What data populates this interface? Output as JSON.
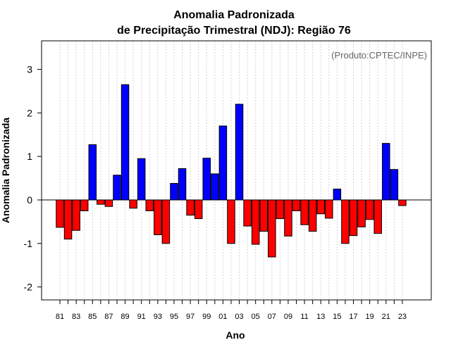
{
  "chart_data": {
    "type": "bar",
    "title": "Anomalia Padronizada",
    "subtitle": "de Precipitação Trimestral (NDJ): Região 76",
    "xlabel": "Ano",
    "ylabel": "Anomalia Padronizada",
    "source": "(Produto:CPTEC/INPE)",
    "ylim": [
      -2.3,
      3.65
    ],
    "yticks": [
      "-2",
      "-1",
      "0",
      "1",
      "2",
      "3"
    ],
    "xtick_labels": [
      "81",
      "83",
      "85",
      "87",
      "89",
      "91",
      "93",
      "95",
      "97",
      "99",
      "01",
      "03",
      "05",
      "07",
      "09",
      "11",
      "13",
      "15",
      "17",
      "19",
      "21",
      "23"
    ],
    "categories": [
      "1981",
      "1982",
      "1983",
      "1984",
      "1985",
      "1986",
      "1987",
      "1988",
      "1989",
      "1990",
      "1991",
      "1992",
      "1993",
      "1994",
      "1995",
      "1996",
      "1997",
      "1998",
      "1999",
      "2000",
      "2001",
      "2002",
      "2003",
      "2004",
      "2005",
      "2006",
      "2007",
      "2008",
      "2009",
      "2010",
      "2011",
      "2012",
      "2013",
      "2014",
      "2015",
      "2016",
      "2017",
      "2018",
      "2019",
      "2020",
      "2021",
      "2022",
      "2023"
    ],
    "values": [
      -0.63,
      -0.9,
      -0.7,
      -0.25,
      1.27,
      -0.1,
      -0.15,
      0.57,
      2.65,
      -0.19,
      0.95,
      -0.25,
      -0.8,
      -1.0,
      0.38,
      0.72,
      -0.35,
      -0.43,
      0.96,
      0.6,
      1.7,
      -1.0,
      2.2,
      -0.6,
      -1.02,
      -0.72,
      -1.31,
      -0.43,
      -0.83,
      -0.25,
      -0.57,
      -0.72,
      -0.32,
      -0.42,
      0.25,
      -1.0,
      -0.82,
      -0.62,
      -0.45,
      -0.77,
      1.3,
      0.7,
      -0.13
    ],
    "colors": {
      "positive": "#0000ff",
      "negative": "#ff0000",
      "grid": "#d3d3d3"
    }
  }
}
